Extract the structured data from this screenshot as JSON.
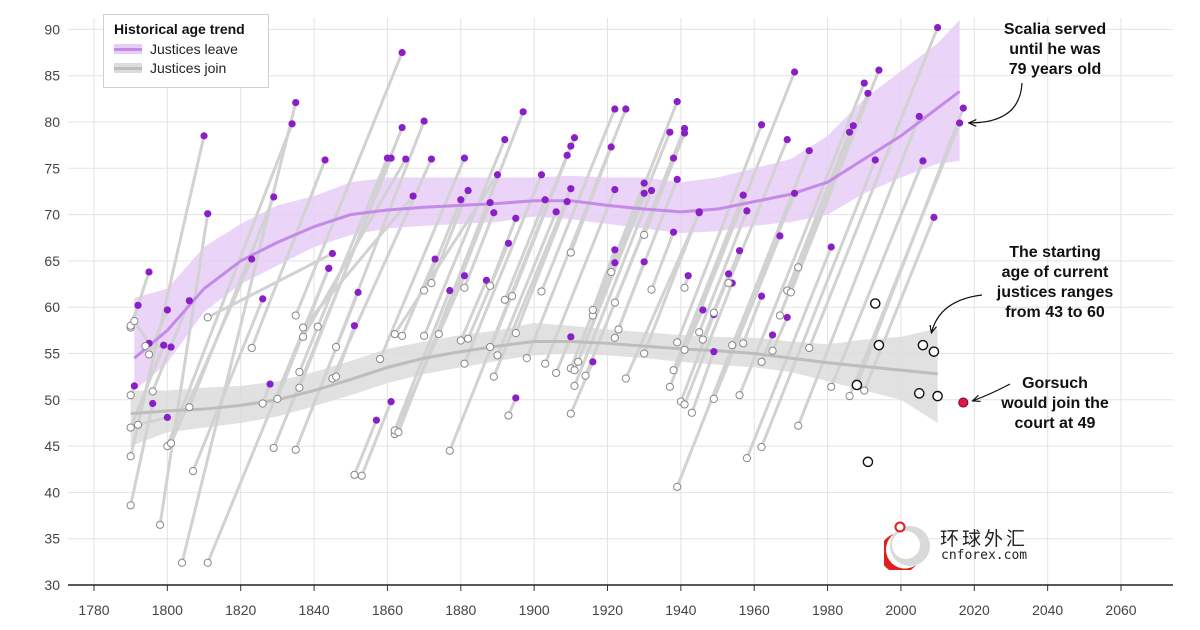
{
  "chart_data": {
    "type": "scatter",
    "title": "",
    "xlabel": "",
    "ylabel": "",
    "xlim": [
      1770,
      2075
    ],
    "ylim": [
      30,
      92
    ],
    "x_ticks": [
      1780,
      1800,
      1820,
      1840,
      1860,
      1880,
      1900,
      1920,
      1940,
      1960,
      1980,
      2000,
      2020,
      2040,
      2060
    ],
    "y_ticks": [
      30,
      35,
      40,
      45,
      50,
      55,
      60,
      65,
      70,
      75,
      80,
      85,
      90
    ],
    "grid": true,
    "legend": {
      "title": "Historical age trend",
      "position": "top-left",
      "entries": [
        {
          "label": "Justices leave",
          "color": "#c48ae8"
        },
        {
          "label": "Justices join",
          "color": "#bdbdbd"
        }
      ]
    },
    "colors": {
      "leave_point": "#8a1fc7",
      "join_point_fill": "#ffffff",
      "join_point_stroke": "#888888",
      "current_point_stroke": "#111111",
      "nominee": "#e0174a",
      "tenure_line": "#d2d2d2",
      "leave_band": "#e6cdf6",
      "join_band": "#dcdcdc"
    },
    "series": [
      {
        "name": "Justices leave",
        "trend": [
          [
            1791,
            54.5
          ],
          [
            1800,
            57.5
          ],
          [
            1810,
            62
          ],
          [
            1820,
            65
          ],
          [
            1830,
            67
          ],
          [
            1840,
            68.7
          ],
          [
            1850,
            70
          ],
          [
            1860,
            70.5
          ],
          [
            1870,
            70.8
          ],
          [
            1880,
            71
          ],
          [
            1890,
            71.2
          ],
          [
            1900,
            71.5
          ],
          [
            1910,
            71.5
          ],
          [
            1920,
            71
          ],
          [
            1930,
            70.6
          ],
          [
            1940,
            70.3
          ],
          [
            1950,
            70.6
          ],
          [
            1960,
            71.4
          ],
          [
            1970,
            72.2
          ],
          [
            1980,
            73.5
          ],
          [
            1990,
            76
          ],
          [
            2000,
            78.5
          ],
          [
            2010,
            81.5
          ],
          [
            2016,
            83.3
          ]
        ],
        "band": [
          [
            1791,
            51,
            61
          ],
          [
            1800,
            54,
            62
          ],
          [
            1810,
            59.5,
            66.5
          ],
          [
            1820,
            62.5,
            69
          ],
          [
            1830,
            64.5,
            71
          ],
          [
            1840,
            66.5,
            72
          ],
          [
            1850,
            67.8,
            73.5
          ],
          [
            1860,
            68.5,
            74
          ],
          [
            1870,
            68.8,
            74
          ],
          [
            1880,
            69,
            74
          ],
          [
            1890,
            69.2,
            74
          ],
          [
            1900,
            69.8,
            74
          ],
          [
            1910,
            69.5,
            74.2
          ],
          [
            1920,
            69,
            74
          ],
          [
            1930,
            68.5,
            74
          ],
          [
            1940,
            68,
            73.5
          ],
          [
            1950,
            68.2,
            74
          ],
          [
            1960,
            68.8,
            75
          ],
          [
            1970,
            69.2,
            76
          ],
          [
            1980,
            70,
            78.5
          ],
          [
            1990,
            72.3,
            82.5
          ],
          [
            2000,
            74,
            85.5
          ],
          [
            2010,
            75.5,
            88.5
          ],
          [
            2016,
            75.8,
            91
          ]
        ]
      },
      {
        "name": "Justices join",
        "trend": [
          [
            1790,
            48.5
          ],
          [
            1800,
            48.8
          ],
          [
            1810,
            49
          ],
          [
            1820,
            49.4
          ],
          [
            1830,
            50
          ],
          [
            1840,
            51
          ],
          [
            1850,
            52.2
          ],
          [
            1860,
            53.5
          ],
          [
            1870,
            54.5
          ],
          [
            1880,
            55.2
          ],
          [
            1890,
            55.8
          ],
          [
            1900,
            56.3
          ],
          [
            1910,
            56.3
          ],
          [
            1920,
            56.1
          ],
          [
            1930,
            55.8
          ],
          [
            1940,
            55.5
          ],
          [
            1950,
            55.3
          ],
          [
            1960,
            55
          ],
          [
            1970,
            54.5
          ],
          [
            1980,
            54
          ],
          [
            1990,
            53.6
          ],
          [
            2000,
            53.2
          ],
          [
            2010,
            52.8
          ]
        ],
        "band": [
          [
            1790,
            45,
            51
          ],
          [
            1800,
            46.5,
            51
          ],
          [
            1810,
            47,
            51.3
          ],
          [
            1820,
            47.5,
            51.5
          ],
          [
            1830,
            48.2,
            52
          ],
          [
            1840,
            49.3,
            53
          ],
          [
            1850,
            50.5,
            54.2
          ],
          [
            1860,
            51.8,
            55.5
          ],
          [
            1870,
            52.8,
            56.3
          ],
          [
            1880,
            53.5,
            57
          ],
          [
            1890,
            54.2,
            57.5
          ],
          [
            1900,
            54.8,
            58.3
          ],
          [
            1910,
            55,
            58
          ],
          [
            1920,
            54.8,
            57.6
          ],
          [
            1930,
            54.5,
            57.3
          ],
          [
            1940,
            54.1,
            57
          ],
          [
            1950,
            53.8,
            56.8
          ],
          [
            1960,
            53.5,
            56.7
          ],
          [
            1970,
            53,
            56.3
          ],
          [
            1980,
            52,
            56
          ],
          [
            1990,
            51,
            56.5
          ],
          [
            2000,
            50,
            56.8
          ],
          [
            2010,
            47.5,
            57.7
          ]
        ]
      }
    ],
    "tenures": [
      [
        1790,
        57.8,
        1795,
        63.8
      ],
      [
        1790,
        50.5,
        1791,
        51.5
      ],
      [
        1790,
        47,
        1799,
        55.9
      ],
      [
        1790,
        43.9,
        1810,
        78.5
      ],
      [
        1790,
        38.6,
        1796,
        49.6
      ],
      [
        1790,
        58,
        1792,
        60.2
      ],
      [
        1791,
        58.5,
        1795,
        56.1
      ],
      [
        1792,
        47.3,
        1800,
        48.1
      ],
      [
        1794,
        55.8,
        1801,
        55.7
      ],
      [
        1795,
        54.9,
        1800,
        59.7
      ],
      [
        1796,
        50.9,
        1806,
        60.7
      ],
      [
        1798,
        36.5,
        1811,
        70.1
      ],
      [
        1800,
        45,
        1834,
        79.8
      ],
      [
        1801,
        45.3,
        1823,
        65.2
      ],
      [
        1804,
        32.4,
        1835,
        82.1
      ],
      [
        1806,
        49.2,
        1829,
        71.9
      ],
      [
        1807,
        42.3,
        1826,
        60.9
      ],
      [
        1811,
        58.9,
        1845,
        65.8
      ],
      [
        1811,
        32.4,
        1844,
        64.2
      ],
      [
        1823,
        55.6,
        1843,
        75.9
      ],
      [
        1826,
        49.6,
        1828,
        51.7
      ],
      [
        1829,
        44.8,
        1861,
        76.1
      ],
      [
        1830,
        50.1,
        1844,
        64.2
      ],
      [
        1835,
        44.6,
        1852,
        61.6
      ],
      [
        1835,
        59.1,
        1864,
        87.5
      ],
      [
        1836,
        53,
        1841,
        57.9
      ],
      [
        1836,
        51.3,
        1864,
        79.4
      ],
      [
        1837,
        56.8,
        1865,
        76.0
      ],
      [
        1837,
        57.8,
        1867,
        72.0
      ],
      [
        1841,
        57.9,
        1860,
        76.1
      ],
      [
        1845,
        52.3,
        1872,
        76.0
      ],
      [
        1846,
        55.7,
        1870,
        80.1
      ],
      [
        1846,
        52.5,
        1851,
        58.0
      ],
      [
        1851,
        41.9,
        1857,
        47.8
      ],
      [
        1853,
        41.8,
        1861,
        49.8
      ],
      [
        1858,
        54.4,
        1881,
        76.1
      ],
      [
        1862,
        57.1,
        1890,
        74.3
      ],
      [
        1862,
        46.3,
        1881,
        63.4
      ],
      [
        1862,
        46.7,
        1877,
        61.8
      ],
      [
        1863,
        46.5,
        1897,
        81.1
      ],
      [
        1864,
        56.9,
        1873,
        65.2
      ],
      [
        1870,
        61.8,
        1880,
        71.6
      ],
      [
        1870,
        56.9,
        1892,
        78.1
      ],
      [
        1872,
        62.6,
        1882,
        72.6
      ],
      [
        1874,
        57.1,
        1888,
        71.3
      ],
      [
        1877,
        44.5,
        1911,
        78.3
      ],
      [
        1880,
        56.4,
        1887,
        62.9
      ],
      [
        1881,
        53.9,
        1902,
        74.3
      ],
      [
        1881,
        62.1,
        1889,
        70.2
      ],
      [
        1882,
        56.6,
        1893,
        66.9
      ],
      [
        1888,
        55.7,
        1910,
        77.4
      ],
      [
        1888,
        62.3,
        1895,
        69.6
      ],
      [
        1889,
        52.5,
        1910,
        72.8
      ],
      [
        1890,
        54.8,
        1906,
        70.3
      ],
      [
        1892,
        60.8,
        1903,
        71.6
      ],
      [
        1893,
        48.3,
        1895,
        50.2
      ],
      [
        1894,
        61.2,
        1909,
        76.4
      ],
      [
        1895,
        57.2,
        1909,
        71.4
      ],
      [
        1898,
        54.5,
        1925,
        81.4
      ],
      [
        1902,
        61.7,
        1922,
        81.4
      ],
      [
        1903,
        53.9,
        1922,
        72.7
      ],
      [
        1906,
        52.9,
        1910,
        56.8
      ],
      [
        1910,
        65.9,
        1921,
        77.3
      ],
      [
        1910,
        48.5,
        1916,
        54.1
      ],
      [
        1910,
        53.4,
        1930,
        73.4
      ],
      [
        1911,
        53.2,
        1937,
        78.9
      ],
      [
        1911,
        51.5,
        1932,
        72.6
      ],
      [
        1912,
        54.1,
        1922,
        64.8
      ],
      [
        1914,
        52.6,
        1941,
        79.3
      ],
      [
        1916,
        59.1,
        1939,
        82.2
      ],
      [
        1916,
        59.7,
        1922,
        66.2
      ],
      [
        1921,
        63.8,
        1930,
        72.3
      ],
      [
        1922,
        60.5,
        1938,
        76.1
      ],
      [
        1922,
        56.7,
        1939,
        73.8
      ],
      [
        1923,
        57.6,
        1930,
        64.9
      ],
      [
        1925,
        52.3,
        1945,
        70.2
      ],
      [
        1930,
        67.8,
        1941,
        78.8
      ],
      [
        1930,
        55,
        1945,
        70.3
      ],
      [
        1932,
        61.9,
        1938,
        68.1
      ],
      [
        1937,
        51.4,
        1971,
        85.4
      ],
      [
        1938,
        53.2,
        1957,
        72.1
      ],
      [
        1939,
        56.2,
        1962,
        79.7
      ],
      [
        1939,
        40.6,
        1975,
        76.9
      ],
      [
        1940,
        49.8,
        1949,
        59.2
      ],
      [
        1941,
        62.1,
        1942,
        63.4
      ],
      [
        1941,
        49.5,
        1954,
        62.6
      ],
      [
        1941,
        55.4,
        1946,
        59.7
      ],
      [
        1943,
        48.6,
        1949,
        55.2
      ],
      [
        1945,
        57.3,
        1958,
        70.4
      ],
      [
        1946,
        56.5,
        1953,
        63.6
      ],
      [
        1949,
        59.4,
        1956,
        66.1
      ],
      [
        1949,
        50.1,
        1967,
        67.7
      ],
      [
        1953,
        62.6,
        1969,
        78.1
      ],
      [
        1954,
        55.9,
        1971,
        72.3
      ],
      [
        1956,
        50.5,
        1990,
        84.2
      ],
      [
        1957,
        56.1,
        1962,
        61.2
      ],
      [
        1958,
        43.7,
        1981,
        66.5
      ],
      [
        1962,
        44.9,
        1993,
        75.9
      ],
      [
        1962,
        54.1,
        1965,
        57.0
      ],
      [
        1965,
        55.3,
        1969,
        58.9
      ],
      [
        1967,
        59.1,
        1991,
        83.1
      ],
      [
        1969,
        61.8,
        1986,
        78.9
      ],
      [
        1970,
        61.6,
        1994,
        85.6
      ],
      [
        1972,
        64.3,
        1987,
        79.6
      ],
      [
        1972,
        47.2,
        2005,
        80.6
      ],
      [
        1975,
        55.6,
        2010,
        90.2
      ],
      [
        1981,
        51.4,
        2006,
        75.8
      ],
      [
        1986,
        50.4,
        2016,
        79.9
      ],
      [
        1988,
        51.6,
        2017,
        81.5
      ],
      [
        1990,
        51,
        2009,
        69.7
      ]
    ],
    "current_justices": [
      {
        "x": 1988,
        "y": 51.6
      },
      {
        "x": 1991,
        "y": 43.3
      },
      {
        "x": 1993,
        "y": 60.4
      },
      {
        "x": 1994,
        "y": 55.9
      },
      {
        "x": 2005,
        "y": 50.7
      },
      {
        "x": 2006,
        "y": 55.9
      },
      {
        "x": 2009,
        "y": 55.2
      },
      {
        "x": 2010,
        "y": 50.4
      }
    ],
    "nominee": {
      "x": 2017,
      "y": 49.7
    },
    "annotations": [
      {
        "text_lines": [
          "Scalia served",
          "until he was",
          "79 years old"
        ],
        "x": 2016,
        "y": 79.9
      },
      {
        "text_lines": [
          "The starting",
          "age of current",
          "justices ranges",
          "from 43 to 60"
        ],
        "x": 2007,
        "y": 57.3
      },
      {
        "text_lines": [
          "Gorsuch",
          "would join the",
          "court at 49"
        ],
        "x": 2017,
        "y": 49.7
      }
    ]
  },
  "watermark": {
    "cn": "环球外汇",
    "en": "cnforex.com"
  }
}
